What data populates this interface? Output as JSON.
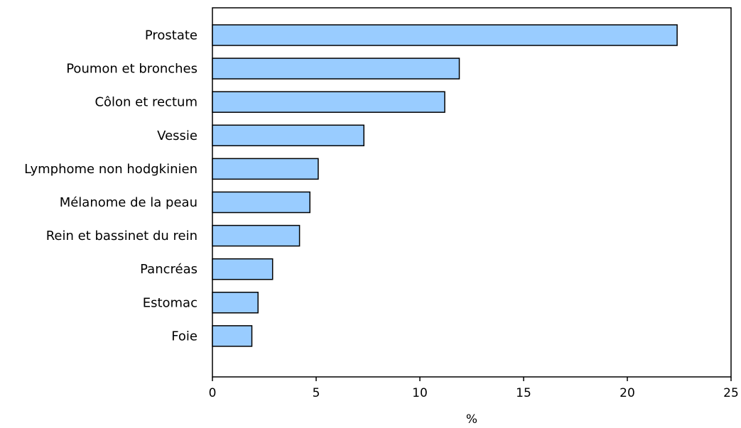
{
  "chart_data": {
    "type": "bar",
    "orientation": "horizontal",
    "categories": [
      "Prostate",
      "Poumon et bronches",
      "Côlon et rectum",
      "Vessie",
      "Lymphome non hodgkinien",
      "Mélanome de la peau",
      "Rein et bassinet du rein",
      "Pancréas",
      "Estomac",
      "Foie"
    ],
    "values": [
      22.4,
      11.9,
      11.2,
      7.3,
      5.1,
      4.7,
      4.2,
      2.9,
      2.2,
      1.9
    ],
    "xlabel": "%",
    "ylabel": "",
    "xlim": [
      0,
      25
    ],
    "xticks": [
      "0",
      "5",
      "10",
      "15",
      "20",
      "25"
    ],
    "grid": false,
    "bar_color": "#99CCFF",
    "bar_edge_color": "#000000"
  }
}
